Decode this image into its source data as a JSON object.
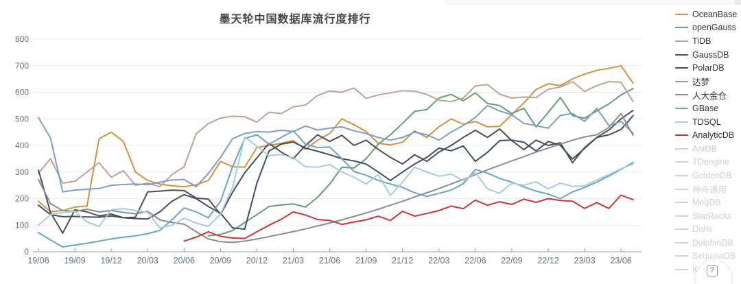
{
  "page": {
    "title": "墨天轮中国数据库流行度排行"
  },
  "help_button": {
    "icon": "?"
  },
  "chart_data": {
    "type": "line",
    "title": "墨天轮中国数据库流行度排行",
    "xlabel": "",
    "ylabel": "",
    "grid": true,
    "legend_position": "right",
    "y_axis": {
      "min": 0,
      "max": 800,
      "step": 100,
      "tick_labels": [
        "0",
        "100",
        "200",
        "300",
        "400",
        "500",
        "600",
        "700",
        "800"
      ]
    },
    "x_tick_labels": [
      "19/06",
      "19/09",
      "19/12",
      "20/03",
      "20/06",
      "20/09",
      "20/12",
      "21/03",
      "21/06",
      "21/09",
      "21/12",
      "22/03",
      "22/06",
      "22/09",
      "22/12",
      "23/03",
      "23/06"
    ],
    "x": [
      "19/06",
      "19/07",
      "19/08",
      "19/09",
      "19/10",
      "19/11",
      "19/12",
      "20/01",
      "20/02",
      "20/03",
      "20/04",
      "20/05",
      "20/06",
      "20/07",
      "20/08",
      "20/09",
      "20/10",
      "20/11",
      "20/12",
      "21/01",
      "21/02",
      "21/03",
      "21/04",
      "21/05",
      "21/06",
      "21/07",
      "21/08",
      "21/09",
      "21/10",
      "21/11",
      "21/12",
      "22/01",
      "22/02",
      "22/03",
      "22/04",
      "22/05",
      "22/06",
      "22/07",
      "22/08",
      "22/09",
      "22/10",
      "22/11",
      "22/12",
      "23/01",
      "23/02",
      "23/03",
      "23/04",
      "23/05",
      "23/06",
      "23/07"
    ],
    "series": [
      {
        "name": "OceanBase",
        "color": "#d5913a",
        "enabled": true,
        "values": [
          190,
          150,
          155,
          168,
          172,
          425,
          450,
          415,
          300,
          268,
          255,
          248,
          245,
          252,
          268,
          340,
          320,
          318,
          392,
          400,
          408,
          418,
          385,
          420,
          445,
          500,
          478,
          452,
          408,
          402,
          412,
          455,
          430,
          470,
          500,
          480,
          490,
          470,
          472,
          516,
          560,
          610,
          632,
          625,
          650,
          668,
          682,
          690,
          700,
          634
        ]
      },
      {
        "name": "openGauss",
        "color": "#619e73",
        "enabled": true,
        "values": [
          null,
          null,
          null,
          null,
          null,
          null,
          null,
          null,
          null,
          null,
          null,
          null,
          null,
          null,
          60,
          65,
          80,
          110,
          140,
          170,
          176,
          180,
          168,
          205,
          255,
          318,
          315,
          350,
          405,
          440,
          483,
          528,
          535,
          578,
          592,
          568,
          598,
          558,
          550,
          520,
          540,
          470,
          524,
          580,
          512,
          502,
          530,
          556,
          590,
          614
        ]
      },
      {
        "name": "TiDB",
        "color": "#c3a096",
        "enabled": true,
        "values": [
          295,
          350,
          258,
          265,
          300,
          335,
          280,
          305,
          250,
          258,
          245,
          290,
          320,
          444,
          482,
          503,
          510,
          508,
          488,
          525,
          520,
          545,
          552,
          588,
          605,
          600,
          616,
          577,
          590,
          598,
          606,
          604,
          592,
          570,
          565,
          578,
          624,
          629,
          593,
          578,
          582,
          580,
          611,
          620,
          640,
          603,
          625,
          640,
          638,
          565
        ]
      },
      {
        "name": "GaussDB",
        "color": "#4d4d52",
        "enabled": true,
        "values": [
          307,
          147,
          70,
          158,
          150,
          135,
          142,
          128,
          130,
          225,
          228,
          232,
          230,
          202,
          198,
          140,
          224,
          297,
          353,
          408,
          375,
          350,
          400,
          440,
          415,
          438,
          400,
          420,
          385,
          355,
          330,
          365,
          340,
          375,
          400,
          430,
          457,
          430,
          462,
          418,
          384,
          420,
          400,
          410,
          335,
          392,
          430,
          458,
          500,
          532
        ]
      },
      {
        "name": "PolarDB",
        "color": "#3f4e63",
        "enabled": true,
        "values": [
          175,
          140,
          132,
          133,
          131,
          130,
          135,
          128,
          125,
          123,
          150,
          190,
          215,
          200,
          170,
          145,
          90,
          85,
          258,
          379,
          405,
          413,
          390,
          378,
          365,
          350,
          342,
          330,
          300,
          268,
          300,
          330,
          355,
          390,
          380,
          398,
          340,
          374,
          418,
          420,
          412,
          379,
          415,
          400,
          349,
          389,
          430,
          440,
          460,
          512
        ]
      },
      {
        "name": "达梦",
        "color": "#7e9cc9",
        "enabled": true,
        "values": [
          505,
          427,
          225,
          232,
          235,
          238,
          250,
          253,
          255,
          252,
          262,
          270,
          272,
          245,
          295,
          355,
          425,
          445,
          452,
          450,
          457,
          452,
          473,
          458,
          465,
          470,
          455,
          445,
          430,
          420,
          430,
          450,
          440,
          420,
          450,
          475,
          505,
          550,
          530,
          515,
          483,
          474,
          465,
          513,
          520,
          490,
          540,
          475,
          490,
          445
        ]
      },
      {
        "name": "人大金仓",
        "color": "#8c8c90",
        "enabled": true,
        "values": [
          272,
          181,
          155,
          152,
          160,
          150,
          155,
          148,
          143,
          152,
          120,
          110,
          104,
          75,
          48,
          38,
          35,
          40,
          48,
          57,
          66,
          76,
          86,
          97,
          108,
          120,
          133,
          146,
          160,
          175,
          190,
          206,
          222,
          238,
          255,
          272,
          290,
          308,
          325,
          342,
          358,
          375,
          390,
          405,
          420,
          432,
          440,
          468,
          520,
          438
        ]
      },
      {
        "name": "GBase",
        "color": "#68a5c2",
        "enabled": true,
        "values": [
          72,
          44,
          18,
          25,
          32,
          40,
          48,
          55,
          60,
          68,
          80,
          120,
          165,
          150,
          128,
          190,
          320,
          426,
          440,
          405,
          430,
          455,
          405,
          392,
          394,
          350,
          302,
          288,
          268,
          255,
          242,
          222,
          208,
          220,
          232,
          256,
          310,
          296,
          276,
          262,
          244,
          228,
          217,
          200,
          225,
          242,
          262,
          285,
          310,
          336
        ]
      },
      {
        "name": "TDSQL",
        "color": "#a3ced9",
        "enabled": true,
        "values": [
          100,
          140,
          147,
          152,
          113,
          95,
          158,
          162,
          155,
          148,
          90,
          100,
          126,
          108,
          95,
          142,
          242,
          431,
          397,
          362,
          366,
          353,
          320,
          318,
          328,
          300,
          280,
          255,
          290,
          212,
          262,
          318,
          300,
          284,
          292,
          268,
          297,
          237,
          220,
          258,
          250,
          263,
          237,
          258,
          246,
          248,
          270,
          290,
          312,
          330
        ]
      },
      {
        "name": "AnalyticDB",
        "color": "#cf3333",
        "enabled": true,
        "values": [
          null,
          null,
          null,
          null,
          null,
          null,
          null,
          null,
          null,
          null,
          null,
          null,
          40,
          55,
          75,
          58,
          52,
          50,
          75,
          100,
          122,
          150,
          138,
          121,
          118,
          103,
          112,
          120,
          134,
          118,
          152,
          134,
          144,
          155,
          172,
          162,
          194,
          175,
          188,
          178,
          198,
          186,
          200,
          193,
          190,
          163,
          185,
          163,
          213,
          196
        ]
      },
      {
        "name": "AntDB",
        "color": "#d2d2d6",
        "enabled": false,
        "values": []
      },
      {
        "name": "TDengine",
        "color": "#d2d2d6",
        "enabled": false,
        "values": []
      },
      {
        "name": "GoldenDB",
        "color": "#d2d2d6",
        "enabled": false,
        "values": []
      },
      {
        "name": "神舟通用",
        "color": "#d2d2d6",
        "enabled": false,
        "values": []
      },
      {
        "name": "MogDB",
        "color": "#d2d2d6",
        "enabled": false,
        "values": []
      },
      {
        "name": "StarRocks",
        "color": "#d2d2d6",
        "enabled": false,
        "values": []
      },
      {
        "name": "Doris",
        "color": "#d2d2d6",
        "enabled": false,
        "values": []
      },
      {
        "name": "DolphinDB",
        "color": "#d2d2d6",
        "enabled": false,
        "values": []
      },
      {
        "name": "SequoiaDB",
        "color": "#d2d2d6",
        "enabled": false,
        "values": []
      },
      {
        "name": "Kyligence",
        "color": "#d2d2d6",
        "enabled": false,
        "values": []
      }
    ],
    "style": {
      "grid_color": "#e3ecf4",
      "axis_color": "#9a9a9a",
      "tick_text_color": "#61707f",
      "line_width": 2
    }
  }
}
